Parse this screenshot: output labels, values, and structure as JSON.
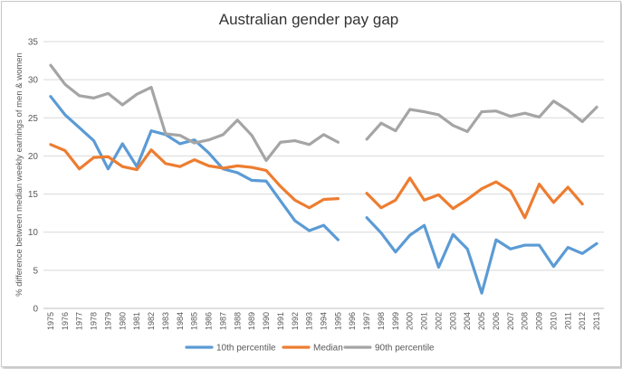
{
  "chart_data": {
    "type": "line",
    "title": "Australian  gender pay gap",
    "ylabel": "% difference between median weekly earnings of men & women",
    "xlabel": "",
    "ylim": [
      0,
      35
    ],
    "yticks": [
      0,
      5,
      10,
      15,
      20,
      25,
      30,
      35
    ],
    "grid": "horizontal",
    "legend_position": "bottom",
    "categories": [
      "1975",
      "1976",
      "1977",
      "1978",
      "1979",
      "1980",
      "1981",
      "1982",
      "1983",
      "1984",
      "1985",
      "1986",
      "1987",
      "1988",
      "1989",
      "1990",
      "1991",
      "1992",
      "1993",
      "1994",
      "1995",
      "1996",
      "1997",
      "1998",
      "1999",
      "2000",
      "2001",
      "2002",
      "2003",
      "2004",
      "2005",
      "2006",
      "2007",
      "2008",
      "2009",
      "2010",
      "2011",
      "2012",
      "2013"
    ],
    "series": [
      {
        "name": "10th percentile",
        "color": "#5b9bd5",
        "values": [
          27.8,
          25.4,
          23.7,
          22.0,
          18.3,
          21.6,
          18.6,
          23.3,
          22.8,
          21.6,
          22.1,
          20.4,
          18.3,
          17.8,
          16.8,
          16.7,
          14.1,
          11.5,
          10.2,
          10.9,
          9.0,
          null,
          11.9,
          9.9,
          7.4,
          9.6,
          10.9,
          5.4,
          9.7,
          7.8,
          2.0,
          9.0,
          7.8,
          8.3,
          8.3,
          5.5,
          8.0,
          7.2,
          8.5
        ]
      },
      {
        "name": "Median",
        "color": "#ed7d31",
        "values": [
          21.5,
          20.7,
          18.3,
          19.8,
          19.9,
          18.6,
          18.2,
          20.8,
          19.0,
          18.6,
          19.5,
          18.7,
          18.4,
          18.7,
          18.5,
          18.1,
          16.0,
          14.2,
          13.2,
          14.3,
          14.4,
          null,
          15.1,
          13.2,
          14.2,
          17.1,
          14.2,
          14.9,
          13.1,
          14.3,
          15.7,
          16.6,
          15.4,
          11.9,
          16.3,
          13.9,
          15.9,
          13.7,
          null
        ]
      },
      {
        "name": "90th percentile",
        "color": "#a5a5a5",
        "values": [
          31.9,
          29.4,
          27.9,
          27.6,
          28.2,
          26.7,
          28.1,
          29.0,
          22.9,
          22.7,
          21.7,
          22.1,
          22.8,
          24.7,
          22.7,
          19.4,
          21.8,
          22.0,
          21.5,
          22.8,
          21.8,
          null,
          22.2,
          24.3,
          23.3,
          26.1,
          25.8,
          25.4,
          24.0,
          23.2,
          25.8,
          25.9,
          25.2,
          25.6,
          25.1,
          27.2,
          26.0,
          24.5,
          26.4
        ]
      }
    ]
  }
}
